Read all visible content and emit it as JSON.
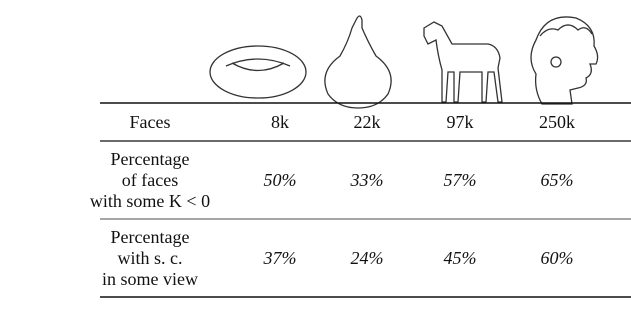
{
  "table": {
    "header": [
      "Faces",
      "8k",
      "22k",
      "97k",
      "250k"
    ],
    "rows": [
      {
        "label": [
          "Percentage",
          "of faces",
          "with some K < 0"
        ],
        "cells": [
          "50%",
          "33%",
          "57%",
          "65%"
        ]
      },
      {
        "label": [
          "Percentage",
          "with s. c.",
          "in some view"
        ],
        "cells": [
          "37%",
          "24%",
          "45%",
          "60%"
        ]
      }
    ]
  }
}
